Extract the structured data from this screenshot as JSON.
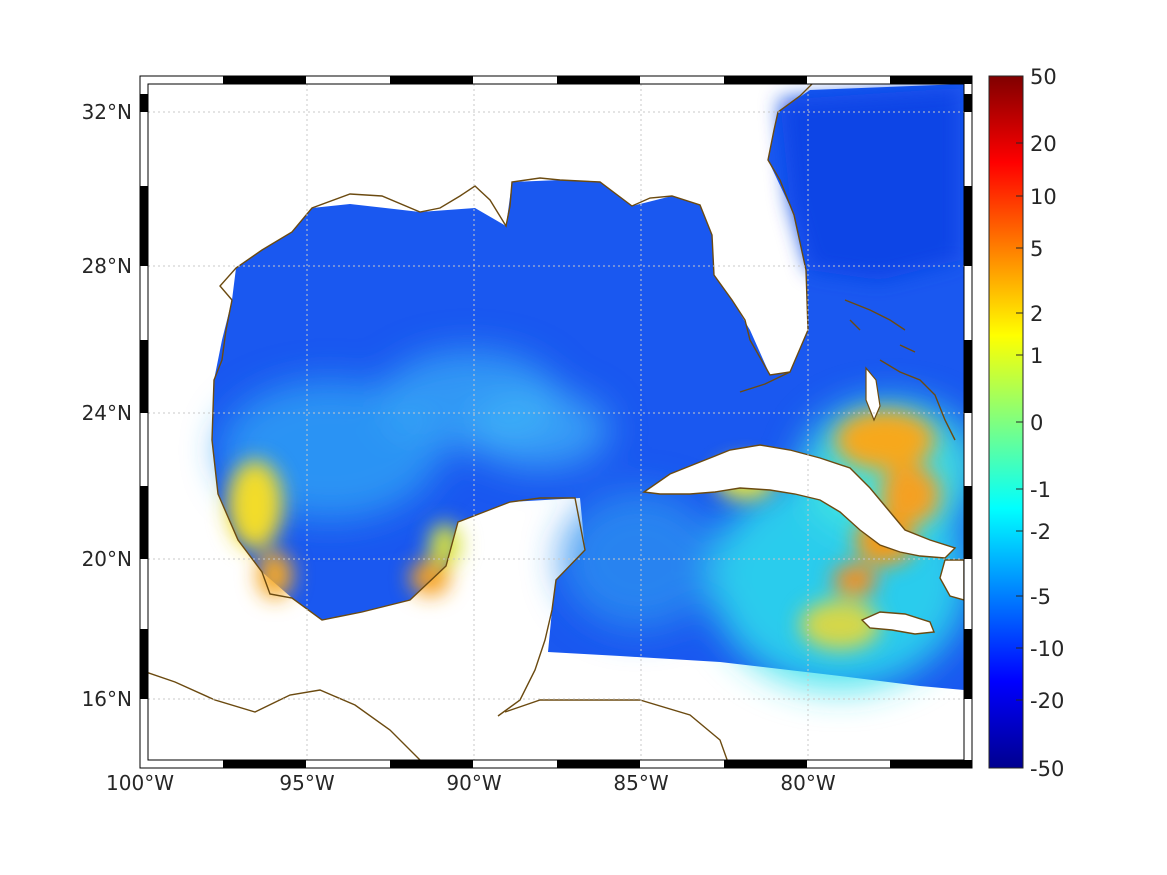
{
  "map": {
    "projection": "lon-lat",
    "lon_range": [
      -100,
      -75
    ],
    "lat_range": [
      14,
      33
    ],
    "frame_style": "alternating black-white ticks",
    "grid": "dotted",
    "coastline_color": "#6b4a10",
    "ocean_gradient_low_color": "#00008f",
    "ocean_gradient_high_color": "#800000",
    "lat_labels": [
      {
        "value": 32,
        "text": "32°N"
      },
      {
        "value": 28,
        "text": "28°N"
      },
      {
        "value": 24,
        "text": "24°N"
      },
      {
        "value": 20,
        "text": "20°N"
      },
      {
        "value": 16,
        "text": "16°N"
      }
    ],
    "lon_labels": [
      {
        "value": -100,
        "text": "100°W"
      },
      {
        "value": -95,
        "text": "95°W"
      },
      {
        "value": -90,
        "text": "90°W"
      },
      {
        "value": -85,
        "text": "85°W"
      },
      {
        "value": -80,
        "text": "80°W"
      }
    ]
  },
  "colorbar": {
    "colormap": "jet",
    "scale": "symmetric-log",
    "range": [
      -50,
      50
    ],
    "labels": [
      {
        "value": 50,
        "text": "50"
      },
      {
        "value": 20,
        "text": "20"
      },
      {
        "value": 10,
        "text": "10"
      },
      {
        "value": 5,
        "text": "5"
      },
      {
        "value": 2,
        "text": "2"
      },
      {
        "value": 1,
        "text": "1"
      },
      {
        "value": 0,
        "text": "0"
      },
      {
        "value": -1,
        "text": "-1"
      },
      {
        "value": -2,
        "text": "-2"
      },
      {
        "value": -5,
        "text": "-5"
      },
      {
        "value": -10,
        "text": "-10"
      },
      {
        "value": -20,
        "text": "-20"
      },
      {
        "value": -50,
        "text": "-50"
      }
    ]
  }
}
